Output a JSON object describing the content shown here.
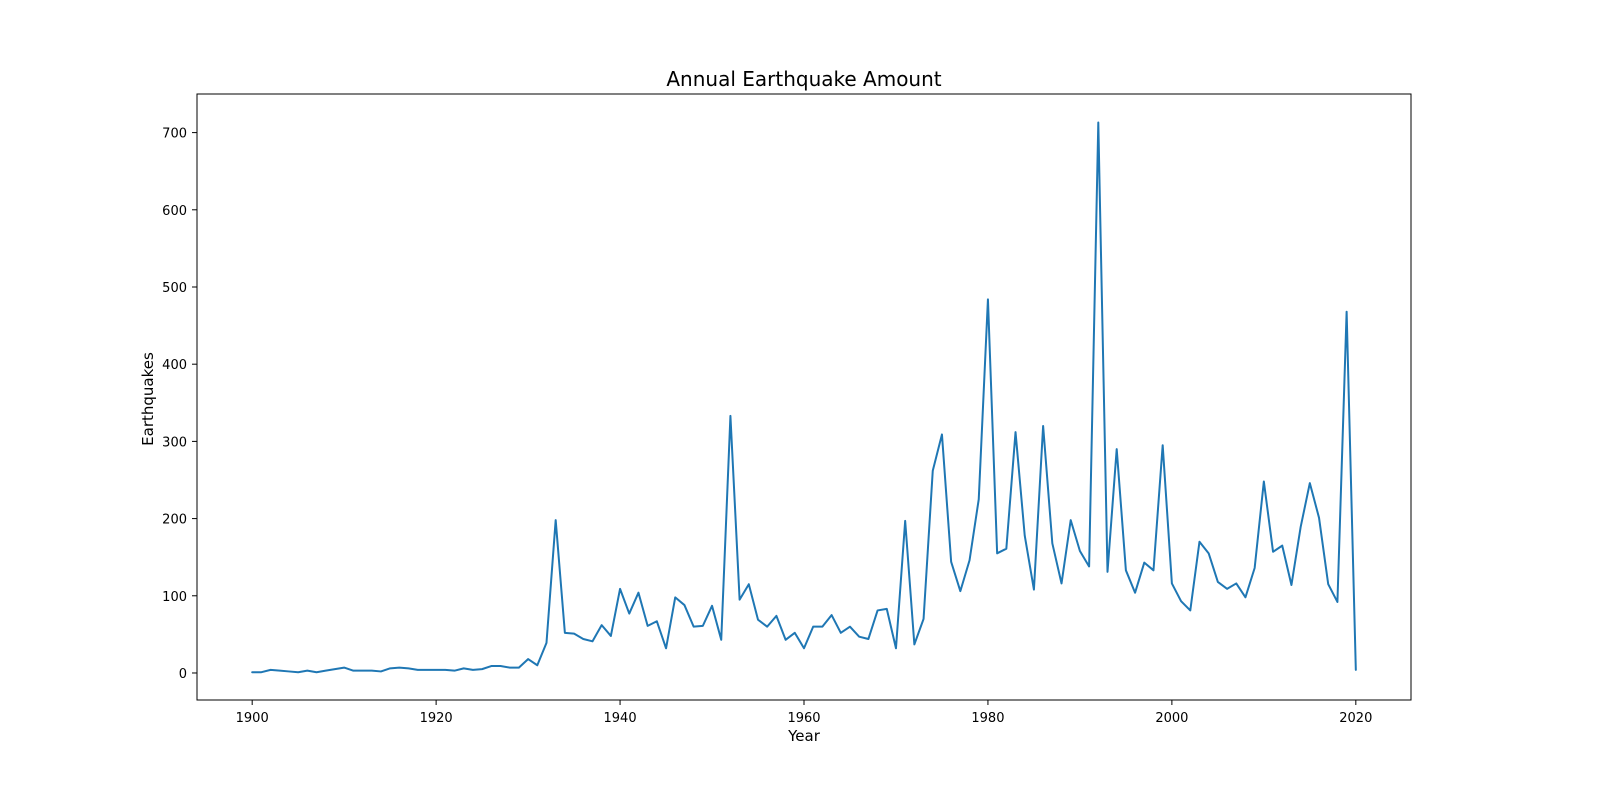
{
  "chart_data": {
    "type": "line",
    "title": "Annual Earthquake Amount",
    "xlabel": "Year",
    "ylabel": "Earthquakes",
    "xlim": [
      1894,
      2026
    ],
    "ylim": [
      -35,
      750
    ],
    "xticks": [
      1900,
      1920,
      1940,
      1960,
      1980,
      2000,
      2020
    ],
    "yticks": [
      0,
      100,
      200,
      300,
      400,
      500,
      600,
      700
    ],
    "grid": false,
    "color": "#1f77b4",
    "x": [
      1900,
      1901,
      1902,
      1903,
      1904,
      1905,
      1906,
      1907,
      1908,
      1909,
      1910,
      1911,
      1912,
      1913,
      1914,
      1915,
      1916,
      1917,
      1918,
      1919,
      1920,
      1921,
      1922,
      1923,
      1924,
      1925,
      1926,
      1927,
      1928,
      1929,
      1930,
      1931,
      1932,
      1933,
      1934,
      1935,
      1936,
      1937,
      1938,
      1939,
      1940,
      1941,
      1942,
      1943,
      1944,
      1945,
      1946,
      1947,
      1948,
      1949,
      1950,
      1951,
      1952,
      1953,
      1954,
      1955,
      1956,
      1957,
      1958,
      1959,
      1960,
      1961,
      1962,
      1963,
      1964,
      1965,
      1966,
      1967,
      1968,
      1969,
      1970,
      1971,
      1972,
      1973,
      1974,
      1975,
      1976,
      1977,
      1978,
      1979,
      1980,
      1981,
      1982,
      1983,
      1984,
      1985,
      1986,
      1987,
      1988,
      1989,
      1990,
      1991,
      1992,
      1993,
      1994,
      1995,
      1996,
      1997,
      1998,
      1999,
      2000,
      2001,
      2002,
      2003,
      2004,
      2005,
      2006,
      2007,
      2008,
      2009,
      2010,
      2011,
      2012,
      2013,
      2014,
      2015,
      2016,
      2017,
      2018,
      2019,
      2020
    ],
    "y": [
      1,
      1,
      4,
      3,
      2,
      1,
      3,
      1,
      3,
      5,
      7,
      3,
      3,
      3,
      2,
      6,
      7,
      6,
      4,
      4,
      4,
      4,
      3,
      6,
      4,
      5,
      9,
      9,
      7,
      7,
      18,
      10,
      39,
      198,
      52,
      51,
      44,
      41,
      62,
      48,
      109,
      77,
      104,
      61,
      67,
      32,
      98,
      88,
      60,
      61,
      87,
      43,
      333,
      95,
      115,
      69,
      60,
      74,
      43,
      52,
      32,
      60,
      60,
      75,
      52,
      60,
      47,
      44,
      81,
      83,
      32,
      197,
      37,
      70,
      262,
      309,
      144,
      106,
      146,
      225,
      484,
      155,
      161,
      312,
      178,
      108,
      320,
      168,
      116,
      198,
      158,
      138,
      713,
      131,
      290,
      133,
      104,
      143,
      133,
      295,
      116,
      93,
      81,
      170,
      155,
      118,
      109,
      116,
      98,
      136,
      248,
      157,
      165,
      114,
      189,
      246,
      201,
      115,
      92,
      468,
      4
    ]
  }
}
